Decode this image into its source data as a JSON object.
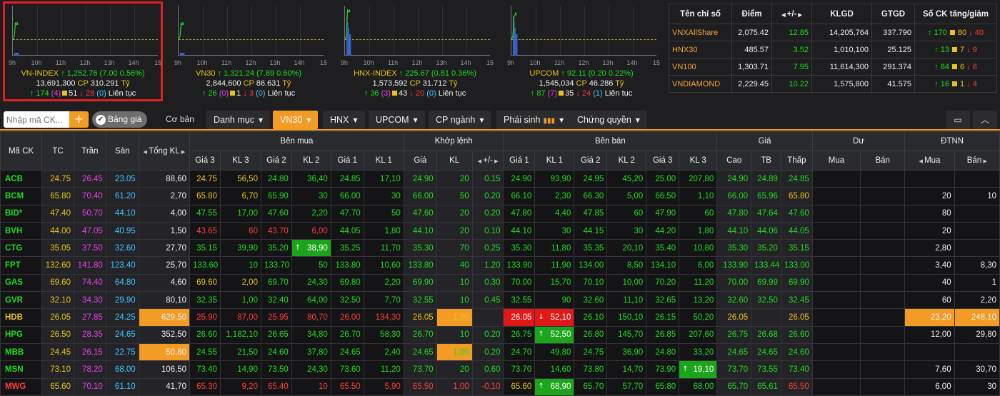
{
  "time_ticks": [
    "9h",
    "10h",
    "11h",
    "12h",
    "13h",
    "14h",
    "15"
  ],
  "indices": [
    {
      "name": "VN-INDEX",
      "value": "1,252.76",
      "change": "(7.00 0.56%)",
      "volume": "13,691,300",
      "cp_label": "CP",
      "gtgd": "310.291",
      "unit": "Tỷ",
      "up": "174",
      "ce": "(4)",
      "ref": "51",
      "down": "28",
      "floor": "(0)",
      "status": "Liên tục",
      "selected": true,
      "spike": 0.0,
      "level": 0.0
    },
    {
      "name": "VN30",
      "value": "1,321.24",
      "change": "(7.89 0.60%)",
      "volume": "2,844,600",
      "cp_label": "CP",
      "gtgd": "86.631",
      "unit": "Tỷ",
      "up": "26",
      "ce": "(0)",
      "ref": "1",
      "down": "3",
      "floor": "(0)",
      "status": "Liên tục",
      "selected": false,
      "spike": 0.0,
      "level": 0.0
    },
    {
      "name": "HNX-INDEX",
      "value": "225.67",
      "change": "(0.81 0.36%)",
      "volume": "1,573,592",
      "cp_label": "CP",
      "gtgd": "31.712",
      "unit": "Tỷ",
      "up": "36",
      "ce": "(3)",
      "ref": "43",
      "down": "20",
      "floor": "(0)",
      "status": "Liên tục",
      "selected": false,
      "spike": 0.9,
      "level": 0.85
    },
    {
      "name": "UPCOM",
      "value": "92.11",
      "change": "(0.20 0.22%)",
      "volume": "1,545,034",
      "cp_label": "CP",
      "gtgd": "46.286",
      "unit": "Tỷ",
      "up": "87",
      "ce": "(7)",
      "ref": "35",
      "down": "24",
      "floor": "(1)",
      "status": "Liên tục",
      "selected": false,
      "spike": 0.7,
      "level": 0.75
    }
  ],
  "summary": {
    "headers": [
      "Tên chỉ số",
      "Điểm",
      "+/-",
      "KLGD",
      "GTGD",
      "Số CK tăng/giảm"
    ],
    "rows": [
      {
        "name": "VNXAllShare",
        "point": "2,075.42",
        "change": "12.85",
        "klgd": "14,205,764",
        "gtgd": "337.790",
        "up": "170",
        "ref": "80",
        "down": "40"
      },
      {
        "name": "HNX30",
        "point": "485.57",
        "change": "3.52",
        "klgd": "1,010,100",
        "gtgd": "25.125",
        "up": "13",
        "ref": "7",
        "down": "9"
      },
      {
        "name": "VN100",
        "point": "1,303.71",
        "change": "7.95",
        "klgd": "11,614,300",
        "gtgd": "291.374",
        "up": "84",
        "ref": "6",
        "down": "6"
      },
      {
        "name": "VNDIAMOND",
        "point": "2,229.45",
        "change": "10.22",
        "klgd": "1,575,800",
        "gtgd": "41.575",
        "up": "16",
        "ref": "1",
        "down": "4"
      }
    ]
  },
  "toolbar": {
    "search_placeholder": "Nhập mã CK...",
    "add_label": "+",
    "bang_gia": "Bảng giá",
    "co_ban": "Cơ bản",
    "tabs": [
      {
        "label": "Danh mục",
        "active": false
      },
      {
        "label": "VN30",
        "active": true
      },
      {
        "label": "HNX",
        "active": false
      },
      {
        "label": "UPCOM",
        "active": false
      },
      {
        "label": "CP ngành",
        "active": false
      },
      {
        "label": "Phái sinh",
        "active": false
      },
      {
        "label": "Chứng quyền",
        "active": false
      }
    ]
  },
  "board": {
    "group_headers": {
      "ben_mua": "Bên mua",
      "khop_lenh": "Khớp lệnh",
      "ben_ban": "Bên bán",
      "gia": "Giá",
      "du": "Dư",
      "dtnn": "ĐTNN"
    },
    "col_headers": {
      "ma_ck": "Mã CK",
      "tc": "TC",
      "tran": "Trần",
      "san": "Sàn",
      "tong_kl": "Tổng KL",
      "gia3": "Giá 3",
      "kl3": "KL 3",
      "gia2": "Giá 2",
      "kl2": "KL 2",
      "gia1": "Giá 1",
      "kl1": "KL 1",
      "gia": "Giá",
      "kl": "KL",
      "chg": "+/-",
      "cao": "Cao",
      "tb": "TB",
      "thap": "Thấp",
      "mua": "Mua",
      "ban": "Bán",
      "nn_mua": "Mua",
      "nn_ban": "Bán"
    },
    "rows": [
      {
        "sym": "ACB",
        "tc": "24.75",
        "tran": "26.45",
        "san": "23.05",
        "tkl": "88,60",
        "b3": "24.75",
        "bk3": "56,50",
        "b2": "24.80",
        "bk2": "36,40",
        "b1": "24.85",
        "bk1": "17,10",
        "m": "24.90",
        "mk": "20",
        "mc": "0.15",
        "s1": "24.90",
        "sk1": "93,90",
        "s2": "24.95",
        "sk2": "45,20",
        "s3": "25.00",
        "sk3": "207,80",
        "cao": "24.90",
        "tb": "24.89",
        "thap": "24.85",
        "dm": "",
        "db": "",
        "nm": "",
        "nb": ""
      },
      {
        "sym": "BCM",
        "tc": "65.80",
        "tran": "70.40",
        "san": "61.20",
        "tkl": "2,70",
        "b3": "65.80",
        "bk3": "6,70",
        "b2": "65.90",
        "bk2": "30",
        "b1": "66.00",
        "bk1": "30",
        "m": "66.00",
        "mk": "50",
        "mc": "0.20",
        "s1": "66.10",
        "sk1": "2,30",
        "s2": "66.30",
        "sk2": "5,00",
        "s3": "66.50",
        "sk3": "1,10",
        "cao": "66.00",
        "tb": "65.96",
        "thap": "65.80",
        "dm": "",
        "db": "",
        "nm": "20",
        "nb": "10"
      },
      {
        "sym": "BID*",
        "tc": "47.40",
        "tran": "50.70",
        "san": "44.10",
        "tkl": "4,00",
        "b3": "47.55",
        "bk3": "17,00",
        "b2": "47.60",
        "bk2": "2,20",
        "b1": "47.70",
        "bk1": "50",
        "m": "47.60",
        "mk": "20",
        "mc": "0.20",
        "s1": "47.80",
        "sk1": "4,40",
        "s2": "47.85",
        "sk2": "60",
        "s3": "47.90",
        "sk3": "60",
        "cao": "47.80",
        "tb": "47.64",
        "thap": "47.60",
        "dm": "",
        "db": "",
        "nm": "80",
        "nb": ""
      },
      {
        "sym": "BVH",
        "tc": "44.00",
        "tran": "47.05",
        "san": "40.95",
        "tkl": "1,50",
        "b3": "43.65",
        "bk3": "60",
        "b2": "43.70",
        "bk2": "6,00",
        "b1": "44.05",
        "bk1": "1,80",
        "m": "44.10",
        "mk": "20",
        "mc": "0.10",
        "s1": "44.10",
        "sk1": "30",
        "s2": "44.15",
        "sk2": "30",
        "s3": "44.20",
        "sk3": "1,80",
        "cao": "44.10",
        "tb": "44.06",
        "thap": "44.05",
        "dm": "",
        "db": "",
        "nm": "20",
        "nb": ""
      },
      {
        "sym": "CTG",
        "tc": "35.05",
        "tran": "37.50",
        "san": "32.60",
        "tkl": "27,70",
        "b3": "35.15",
        "bk3": "39,90",
        "b2": "35.20",
        "bk2": "38,90",
        "b1": "35.25",
        "bk1": "11,70",
        "m": "35.30",
        "mk": "70",
        "mc": "0.25",
        "s1": "35.30",
        "sk1": "11,80",
        "s2": "35.35",
        "sk2": "20,10",
        "s3": "35.40",
        "sk3": "10,80",
        "cao": "35.30",
        "tb": "35.20",
        "thap": "35.15",
        "dm": "",
        "db": "",
        "nm": "2,80",
        "nb": ""
      },
      {
        "sym": "FPT",
        "tc": "132.60",
        "tran": "141.80",
        "san": "123.40",
        "tkl": "25,70",
        "b3": "133.60",
        "bk3": "10",
        "b2": "133.70",
        "bk2": "50",
        "b1": "133.80",
        "bk1": "10,60",
        "m": "133.80",
        "mk": "40",
        "mc": "1.20",
        "s1": "133.90",
        "sk1": "11,90",
        "s2": "134.00",
        "sk2": "8,50",
        "s3": "134.10",
        "sk3": "6,00",
        "cao": "133.90",
        "tb": "133.44",
        "thap": "133.00",
        "dm": "",
        "db": "",
        "nm": "3,40",
        "nb": "8,30"
      },
      {
        "sym": "GAS",
        "tc": "69.60",
        "tran": "74.40",
        "san": "64.80",
        "tkl": "4,60",
        "b3": "69.60",
        "bk3": "2,00",
        "b2": "69.70",
        "bk2": "24,30",
        "b1": "69.80",
        "bk1": "2,20",
        "m": "69.90",
        "mk": "10",
        "mc": "0.30",
        "s1": "70.00",
        "sk1": "15,70",
        "s2": "70.10",
        "sk2": "10,00",
        "s3": "70.20",
        "sk3": "11,20",
        "cao": "70.00",
        "tb": "69.99",
        "thap": "69.90",
        "dm": "",
        "db": "",
        "nm": "40",
        "nb": "1"
      },
      {
        "sym": "GVR",
        "tc": "32.10",
        "tran": "34.30",
        "san": "29.90",
        "tkl": "80,10",
        "b3": "32.35",
        "bk3": "1,00",
        "b2": "32.40",
        "bk2": "64,00",
        "b1": "32.50",
        "bk1": "7,70",
        "m": "32.55",
        "mk": "10",
        "mc": "0.45",
        "s1": "32.55",
        "sk1": "90",
        "s2": "32.60",
        "sk2": "11,10",
        "s3": "32.65",
        "sk3": "13,20",
        "cao": "32.60",
        "tb": "32.50",
        "thap": "32.45",
        "dm": "",
        "db": "",
        "nm": "60",
        "nb": "2,20"
      },
      {
        "sym": "HDB",
        "tc": "26.05",
        "tran": "27.85",
        "san": "24.25",
        "tkl": "629,50",
        "b3": "25.90",
        "bk3": "87,00",
        "b2": "25.95",
        "bk2": "80,70",
        "b1": "26.00",
        "bk1": "134,30",
        "m": "26.05",
        "mk": "1,00",
        "mc": "",
        "s1": "26.05",
        "sk1": "52,10",
        "s2": "26.10",
        "sk2": "150,10",
        "s3": "26.15",
        "sk3": "50,20",
        "cao": "26.05",
        "tb": "",
        "thap": "26.05",
        "dm": "",
        "db": "",
        "nm": "23,20",
        "nb": "248,10"
      },
      {
        "sym": "HPG",
        "tc": "26.50",
        "tran": "28.35",
        "san": "24.65",
        "tkl": "352,50",
        "b3": "26.60",
        "bk3": "1,182,10",
        "b2": "26.65",
        "bk2": "34,80",
        "b1": "26.70",
        "bk1": "58,30",
        "m": "26.70",
        "mk": "10",
        "mc": "0.20",
        "s1": "26.75",
        "sk1": "52,50",
        "s2": "26.80",
        "sk2": "145,70",
        "s3": "26.85",
        "sk3": "207,60",
        "cao": "26.75",
        "tb": "26.68",
        "thap": "26.60",
        "dm": "",
        "db": "",
        "nm": "12,00",
        "nb": "29,80"
      },
      {
        "sym": "MBB",
        "tc": "24.45",
        "tran": "26.15",
        "san": "22.75",
        "tkl": "50,80",
        "b3": "24.55",
        "bk3": "21,50",
        "b2": "24.60",
        "bk2": "37,80",
        "b1": "24.65",
        "bk1": "2,40",
        "m": "24.65",
        "mk": "1,00",
        "mc": "0.20",
        "s1": "24.70",
        "sk1": "49,80",
        "s2": "24.75",
        "sk2": "36,90",
        "s3": "24.80",
        "sk3": "33,20",
        "cao": "24.65",
        "tb": "24.65",
        "thap": "24.60",
        "dm": "",
        "db": "",
        "nm": "",
        "nb": ""
      },
      {
        "sym": "MSN",
        "tc": "73.10",
        "tran": "78.20",
        "san": "68.00",
        "tkl": "106,50",
        "b3": "73.40",
        "bk3": "14,90",
        "b2": "73.50",
        "bk2": "24,30",
        "b1": "73.60",
        "bk1": "11,20",
        "m": "73.70",
        "mk": "20",
        "mc": "0.60",
        "s1": "73.70",
        "sk1": "14,60",
        "s2": "73.80",
        "sk2": "14,70",
        "s3": "73.90",
        "sk3": "19,10",
        "cao": "73.70",
        "tb": "73.55",
        "thap": "73.40",
        "dm": "",
        "db": "",
        "nm": "7,60",
        "nb": "30,70"
      },
      {
        "sym": "MWG",
        "tc": "65.60",
        "tran": "70.10",
        "san": "61.10",
        "tkl": "41,70",
        "b3": "65.30",
        "bk3": "9,20",
        "b2": "65.40",
        "bk2": "10",
        "b1": "65.50",
        "bk1": "5,90",
        "m": "65.50",
        "mk": "1,00",
        "mc": "-0.10",
        "s1": "65.60",
        "sk1": "68,90",
        "s2": "65.70",
        "sk2": "57,70",
        "s3": "65.80",
        "sk3": "68,00",
        "cao": "65.70",
        "tb": "65.61",
        "thap": "65.50",
        "dm": "",
        "db": "",
        "nm": "6,00",
        "nb": "30"
      }
    ]
  },
  "colors": {
    "up": "#1ddc1d",
    "down": "#ff3b3b",
    "ref": "#e8c31b",
    "ceiling": "#e541e5",
    "floor": "#3ec8ff",
    "accent": "#f39c25"
  },
  "icons": {
    "add": "plus-icon",
    "check": "check-icon",
    "monitor": "monitor-icon",
    "collapse": "chevron-up-icon",
    "caret": "caret-down-icon",
    "chart": "bar-chart-icon"
  }
}
